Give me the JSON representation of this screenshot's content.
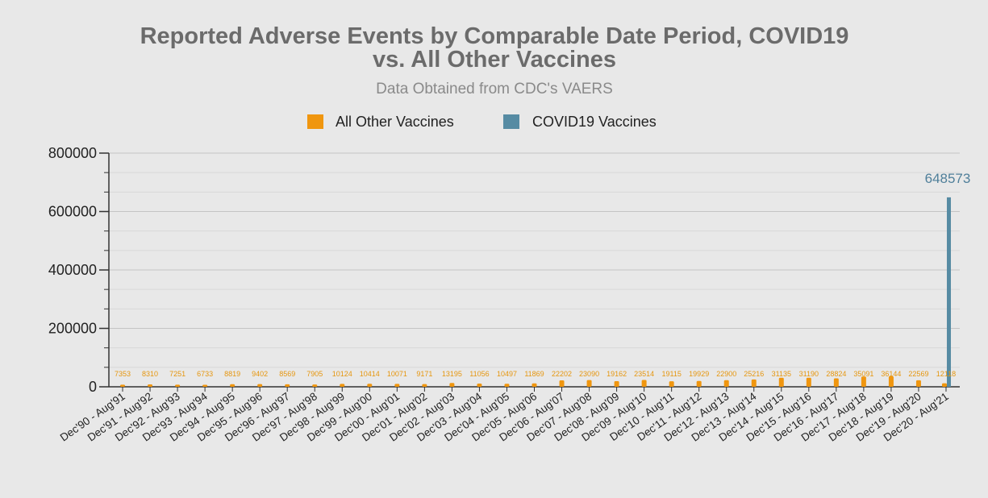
{
  "chart_data": {
    "type": "bar",
    "title_line1": "Reported Adverse Events by Comparable Date Period, COVID19",
    "title_line2": "vs. All Other Vaccines",
    "subtitle": "Data Obtained from CDC's VAERS",
    "xlabel": "",
    "ylabel": "",
    "ylim": [
      0,
      800000
    ],
    "yticks": [
      0,
      200000,
      400000,
      600000,
      800000
    ],
    "grid": true,
    "legend_position": "top-center",
    "categories": [
      "Dec'90 - Aug'91",
      "Dec'91 - Aug'92",
      "Dec'92 - Aug'93",
      "Dec'93 - Aug'94",
      "Dec'94 - Aug'95",
      "Dec'95 - Aug'96",
      "Dec'96 - Aug'97",
      "Dec'97 - Aug'98",
      "Dec'98 - Aug'99",
      "Dec'99 - Aug'00",
      "Dec'00 - Aug'01",
      "Dec'01 - Aug'02",
      "Dec'02 - Aug'03",
      "Dec'03 - Aug'04",
      "Dec'04 - Aug'05",
      "Dec'05 - Aug'06",
      "Dec'06 - Aug'07",
      "Dec'07 - Aug'08",
      "Dec'08 - Aug'09",
      "Dec'09 - Aug'10",
      "Dec'10 - Aug'11",
      "Dec'11 - Aug'12",
      "Dec'12 - Aug'13",
      "Dec'13 - Aug'14",
      "Dec'14 - Aug'15",
      "Dec'15 - Aug'16",
      "Dec'16 - Aug'17",
      "Dec'17 - Aug'18",
      "Dec'18 - Aug'19",
      "Dec'19 - Aug'20",
      "Dec'20 - Aug'21"
    ],
    "series": [
      {
        "name": "All Other Vaccines",
        "color": "#f0960f",
        "values": [
          7353,
          8310,
          7251,
          6733,
          8819,
          9402,
          8569,
          7905,
          10124,
          10414,
          10071,
          9171,
          13195,
          11056,
          10497,
          11869,
          22202,
          23090,
          19162,
          23514,
          19115,
          19929,
          22900,
          25216,
          31135,
          31190,
          28824,
          35091,
          36144,
          22569,
          12118
        ]
      },
      {
        "name": "COVID19 Vaccines",
        "color": "#568ba3",
        "values": [
          null,
          null,
          null,
          null,
          null,
          null,
          null,
          null,
          null,
          null,
          null,
          null,
          null,
          null,
          null,
          null,
          null,
          null,
          null,
          null,
          null,
          null,
          null,
          null,
          null,
          null,
          null,
          null,
          null,
          null,
          648573
        ]
      }
    ]
  }
}
